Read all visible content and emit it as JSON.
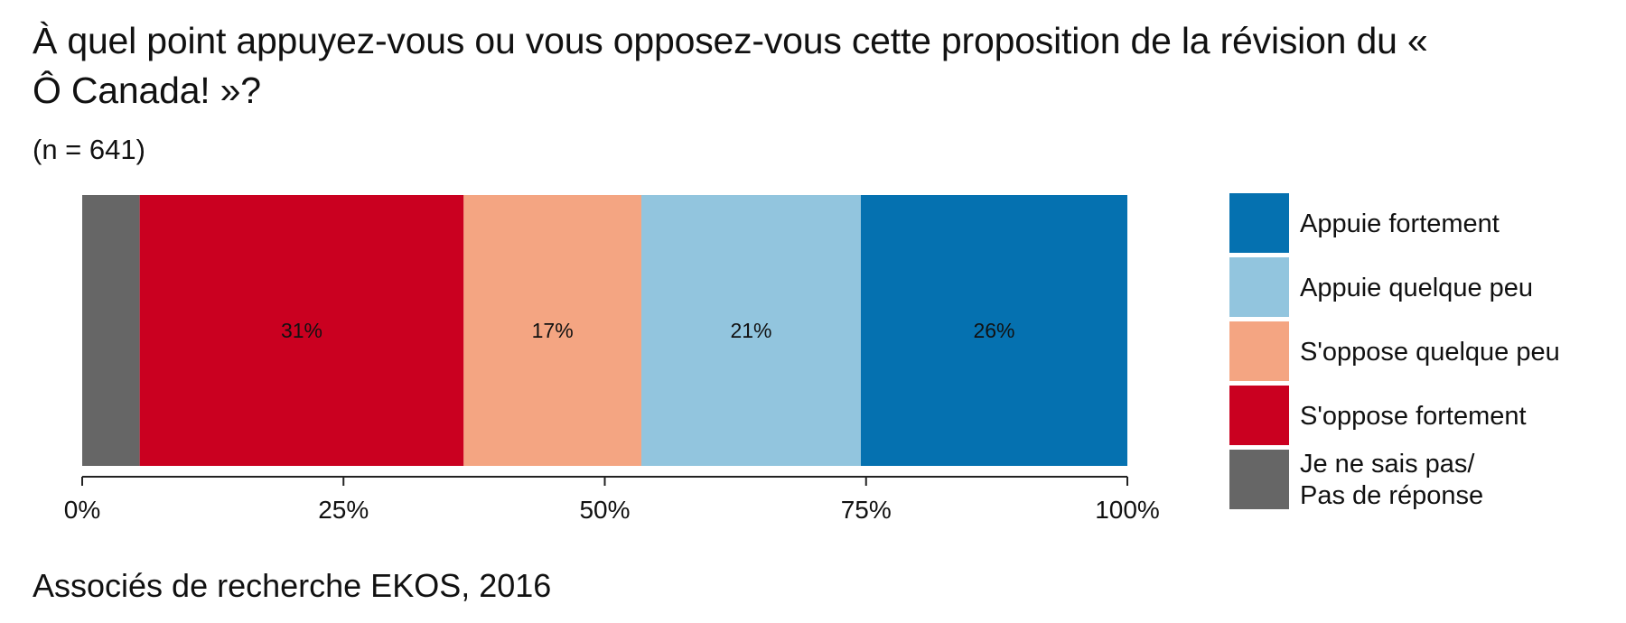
{
  "title": "À quel point appuyez-vous ou vous opposez-vous cette proposition de la révision du « Ô Canada! »?",
  "subtitle": "(n = 641)",
  "source": "Associés de recherche EKOS, 2016",
  "chart_data": {
    "type": "bar",
    "orientation": "horizontal",
    "stacked": true,
    "xlim": [
      0,
      100
    ],
    "x_ticks": [
      0,
      25,
      50,
      75,
      100
    ],
    "x_tick_labels": [
      "0%",
      "25%",
      "50%",
      "75%",
      "100%"
    ],
    "grid": false,
    "legend_position": "right",
    "series": [
      {
        "name": "Je ne sais pas/\nPas de réponse",
        "value": 5.5,
        "color": "#666666",
        "data_label": ""
      },
      {
        "name": "S'oppose fortement",
        "value": 31,
        "color": "#ca0020",
        "data_label": "31%"
      },
      {
        "name": "S'oppose quelque peu",
        "value": 17,
        "color": "#f4a582",
        "data_label": "17%"
      },
      {
        "name": "Appuie quelque peu",
        "value": 21,
        "color": "#92c5de",
        "data_label": "21%"
      },
      {
        "name": "Appuie fortement",
        "value": 25.5,
        "color": "#0571b0",
        "data_label": "26%"
      }
    ],
    "legend_order": [
      "Appuie fortement",
      "Appuie quelque peu",
      "S'oppose quelque peu",
      "S'oppose fortement",
      "Je ne sais pas/\nPas de réponse"
    ]
  }
}
